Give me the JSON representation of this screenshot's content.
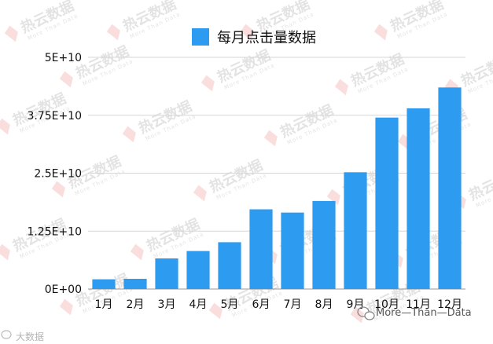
{
  "chart_data": {
    "type": "bar",
    "legend_position": "top",
    "grid": true,
    "series": [
      {
        "name": "每月点击量数据",
        "color": "#2d9bf0",
        "values": [
          2100000000,
          2200000000,
          6600000000,
          8200000000,
          10100000000,
          17200000000,
          16500000000,
          19000000000,
          25200000000,
          37000000000,
          39000000000,
          43500000000
        ]
      }
    ],
    "categories": [
      "1月",
      "2月",
      "3月",
      "4月",
      "5月",
      "6月",
      "7月",
      "8月",
      "9月",
      "10月",
      "11月",
      "12月"
    ],
    "yticks": [
      {
        "value": 0,
        "label": "0E+00"
      },
      {
        "value": 12500000000,
        "label": "1.25E+10"
      },
      {
        "value": 25000000000,
        "label": "2.5E+10"
      },
      {
        "value": 37500000000,
        "label": "3.75E+10"
      },
      {
        "value": 50000000000,
        "label": "5E+10"
      }
    ],
    "ylim": [
      0,
      50000000000
    ]
  },
  "watermark": {
    "text": "热云数据",
    "subtext": "More Than Data"
  },
  "credit": {
    "text": "More—Than—Data"
  },
  "corner_mark": {
    "text": "大数据"
  }
}
